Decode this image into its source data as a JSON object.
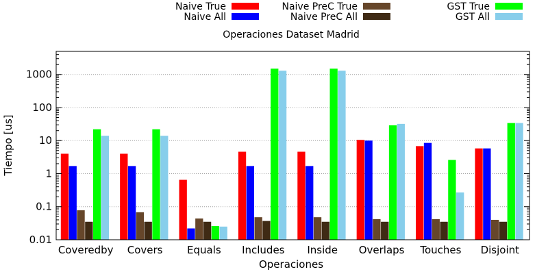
{
  "chart_data": {
    "type": "bar",
    "title": "Operaciones Dataset Madrid",
    "xlabel": "Operaciones",
    "ylabel": "Tiempo [us]",
    "yscale": "log",
    "ylim": [
      0.01,
      5000
    ],
    "yticks": [
      0.01,
      0.1,
      1,
      10,
      100,
      1000
    ],
    "ytick_labels": [
      "0.01",
      "0.1",
      "1",
      "10",
      "100",
      "1000"
    ],
    "grid": true,
    "legend_position": "top",
    "categories": [
      "Coveredby",
      "Covers",
      "Equals",
      "Includes",
      "Inside",
      "Overlaps",
      "Touches",
      "Disjoint"
    ],
    "series": [
      {
        "name": "Naive True",
        "color": "#ff0000",
        "values": [
          4.0,
          4.0,
          0.65,
          4.6,
          4.6,
          10.5,
          6.8,
          5.8
        ]
      },
      {
        "name": "Naive All",
        "color": "#0000ff",
        "values": [
          1.7,
          1.7,
          0.022,
          1.7,
          1.7,
          10.0,
          8.5,
          5.8
        ]
      },
      {
        "name": "Naive PreC True",
        "color": "#66462a",
        "values": [
          0.078,
          0.068,
          0.044,
          0.048,
          0.048,
          0.042,
          0.042,
          0.04
        ]
      },
      {
        "name": "Naive PreC All",
        "color": "#3f2a14",
        "values": [
          0.035,
          0.035,
          0.035,
          0.037,
          0.035,
          0.035,
          0.035,
          0.035
        ]
      },
      {
        "name": "GST True",
        "color": "#00ff00",
        "values": [
          22,
          22,
          0.026,
          1500,
          1500,
          29,
          2.6,
          34
        ]
      },
      {
        "name": "GST All",
        "color": "#87ceeb",
        "values": [
          14,
          14,
          0.025,
          1300,
          1300,
          32,
          0.27,
          34
        ]
      }
    ]
  }
}
